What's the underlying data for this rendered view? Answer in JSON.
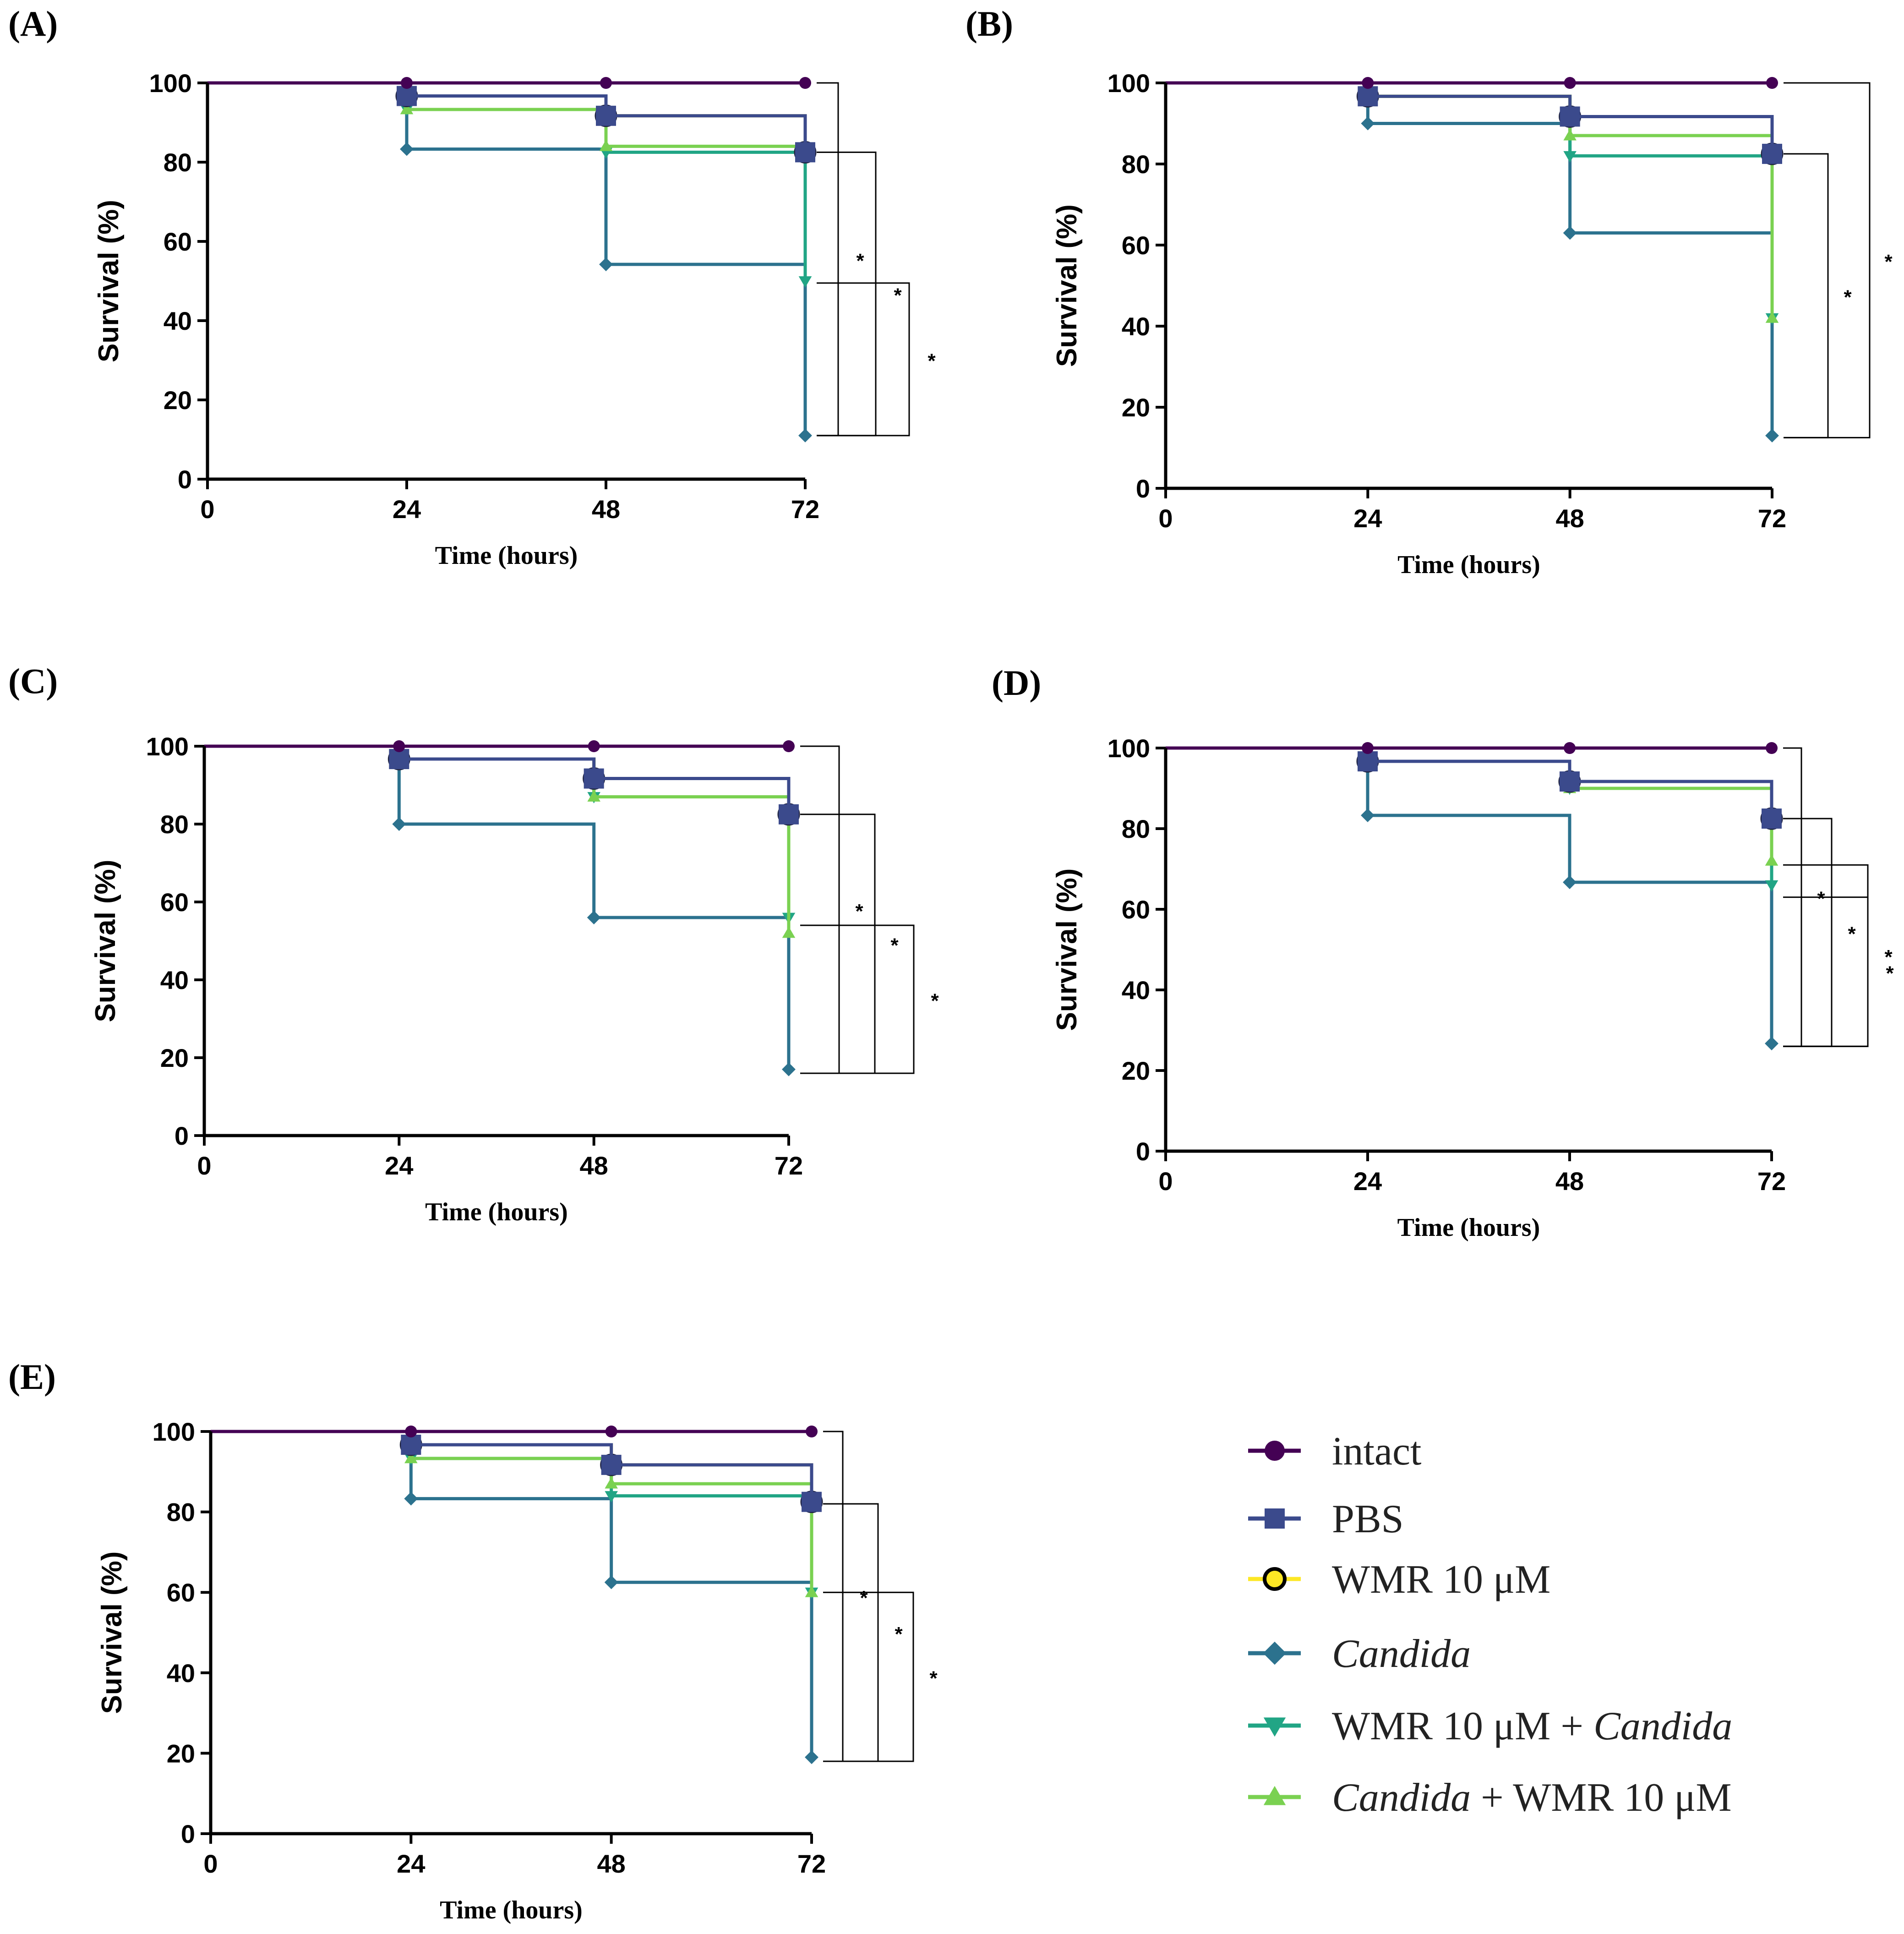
{
  "figure": {
    "legend": [
      {
        "key": "intact",
        "label": "intact",
        "italic_part": "",
        "prefix": "",
        "suffix": "",
        "color": "#440154",
        "marker": "circle"
      },
      {
        "key": "pbs",
        "label": "PBS",
        "italic_part": "",
        "prefix": "",
        "suffix": "",
        "color": "#3b4a8c",
        "marker": "square"
      },
      {
        "key": "wmr",
        "label": "WMR 10 μM",
        "italic_part": "",
        "prefix": "",
        "suffix": "",
        "color": "#fde725",
        "marker": "circle-open"
      },
      {
        "key": "candida",
        "label": "Candida",
        "italic_part": "Candida",
        "prefix": "",
        "suffix": "",
        "color": "#2c728e",
        "marker": "diamond"
      },
      {
        "key": "wmr_candida",
        "label": "WMR 10 μM + Candida",
        "italic_part": "Candida",
        "prefix": "WMR 10 μM + ",
        "suffix": "",
        "color": "#21a585",
        "marker": "triangle-down"
      },
      {
        "key": "candida_wmr",
        "label": "Candida + WMR 10 μM",
        "italic_part": "Candida",
        "prefix": "",
        "suffix": " + WMR 10 μM",
        "color": "#7ad151",
        "marker": "triangle-up"
      }
    ],
    "significance_marker": "*"
  },
  "chart_data": [
    {
      "panel": "(A)",
      "type": "line",
      "step": true,
      "xlabel": "Time (hours)",
      "ylabel": "Survival (%)",
      "xlim": [
        0,
        72
      ],
      "ylim": [
        0,
        100
      ],
      "xticks": [
        0,
        24,
        48,
        72
      ],
      "yticks": [
        0,
        20,
        40,
        60,
        80,
        100
      ],
      "series": [
        {
          "name": "intact",
          "x": [
            0,
            24,
            48,
            72
          ],
          "values": [
            100,
            100,
            100,
            100
          ]
        },
        {
          "name": "PBS",
          "x": [
            0,
            24,
            48,
            72
          ],
          "values": [
            100,
            96.7,
            91.7,
            82.5
          ]
        },
        {
          "name": "WMR 10 μM",
          "x": [
            0,
            24,
            48,
            72
          ],
          "values": [
            100,
            96.7,
            91.7,
            82.5
          ]
        },
        {
          "name": "Candida + WMR 10 μM",
          "x": [
            0,
            24,
            48,
            72
          ],
          "values": [
            100,
            93.3,
            84,
            84
          ]
        },
        {
          "name": "WMR 10 μM + Candida",
          "x": [
            0,
            24,
            48,
            72
          ],
          "values": [
            100,
            93.3,
            82.5,
            50
          ]
        },
        {
          "name": "Candida",
          "x": [
            0,
            24,
            48,
            72
          ],
          "values": [
            100,
            83.3,
            54.2,
            11
          ]
        }
      ],
      "brackets": [
        {
          "from": 100,
          "to": 11,
          "label": "*"
        },
        {
          "from": 82.5,
          "to": 11,
          "label": "*"
        },
        {
          "from": 49.5,
          "to": 11,
          "label": "*"
        }
      ]
    },
    {
      "panel": "(B)",
      "type": "line",
      "step": true,
      "xlabel": "Time (hours)",
      "ylabel": "Survival (%)",
      "xlim": [
        0,
        72
      ],
      "ylim": [
        0,
        100
      ],
      "xticks": [
        0,
        24,
        48,
        72
      ],
      "yticks": [
        0,
        20,
        40,
        60,
        80,
        100
      ],
      "series": [
        {
          "name": "intact",
          "x": [
            0,
            24,
            48,
            72
          ],
          "values": [
            100,
            100,
            100,
            100
          ]
        },
        {
          "name": "PBS",
          "x": [
            0,
            24,
            48,
            72
          ],
          "values": [
            100,
            96.7,
            91.7,
            82.5
          ]
        },
        {
          "name": "WMR 10 μM",
          "x": [
            0,
            24,
            48,
            72
          ],
          "values": [
            100,
            96.7,
            91.7,
            82.5
          ]
        },
        {
          "name": "Candida + WMR 10 μM",
          "x": [
            0,
            24,
            48,
            72
          ],
          "values": [
            100,
            96.7,
            87,
            42
          ]
        },
        {
          "name": "WMR 10 μM + Candida",
          "x": [
            0,
            24,
            48,
            72
          ],
          "values": [
            100,
            96.7,
            82,
            42
          ]
        },
        {
          "name": "Candida",
          "x": [
            0,
            24,
            48,
            72
          ],
          "values": [
            100,
            90,
            63,
            13
          ]
        }
      ],
      "brackets": [
        {
          "from": 82.5,
          "to": 12.5,
          "label": "*"
        },
        {
          "from": 100,
          "to": 12.5,
          "label": "*"
        }
      ]
    },
    {
      "panel": "(C)",
      "type": "line",
      "step": true,
      "xlabel": "Time (hours)",
      "ylabel": "Survival (%)",
      "xlim": [
        0,
        72
      ],
      "ylim": [
        0,
        100
      ],
      "xticks": [
        0,
        24,
        48,
        72
      ],
      "yticks": [
        0,
        20,
        40,
        60,
        80,
        100
      ],
      "series": [
        {
          "name": "intact",
          "x": [
            0,
            24,
            48,
            72
          ],
          "values": [
            100,
            100,
            100,
            100
          ]
        },
        {
          "name": "PBS",
          "x": [
            0,
            24,
            48,
            72
          ],
          "values": [
            100,
            96.7,
            91.7,
            82.5
          ]
        },
        {
          "name": "WMR 10 μM",
          "x": [
            0,
            24,
            48,
            72
          ],
          "values": [
            100,
            96.7,
            91.7,
            82.5
          ]
        },
        {
          "name": "Candida + WMR 10 μM",
          "x": [
            0,
            24,
            48,
            72
          ],
          "values": [
            100,
            96.7,
            87,
            52
          ]
        },
        {
          "name": "WMR 10 μM + Candida",
          "x": [
            0,
            24,
            48,
            72
          ],
          "values": [
            100,
            96.7,
            87,
            56
          ]
        },
        {
          "name": "Candida",
          "x": [
            0,
            24,
            48,
            72
          ],
          "values": [
            100,
            80,
            56,
            17
          ]
        }
      ],
      "brackets": [
        {
          "from": 100,
          "to": 16,
          "label": "*"
        },
        {
          "from": 82.5,
          "to": 16,
          "label": "*"
        },
        {
          "from": 54,
          "to": 16,
          "label": "*"
        }
      ]
    },
    {
      "panel": "(D)",
      "type": "line",
      "step": true,
      "xlabel": "Time (hours)",
      "ylabel": "Survival (%)",
      "xlim": [
        0,
        72
      ],
      "ylim": [
        0,
        100
      ],
      "xticks": [
        0,
        24,
        48,
        72
      ],
      "yticks": [
        0,
        20,
        40,
        60,
        80,
        100
      ],
      "series": [
        {
          "name": "intact",
          "x": [
            0,
            24,
            48,
            72
          ],
          "values": [
            100,
            100,
            100,
            100
          ]
        },
        {
          "name": "PBS",
          "x": [
            0,
            24,
            48,
            72
          ],
          "values": [
            100,
            96.7,
            91.7,
            82.5
          ]
        },
        {
          "name": "WMR 10 μM",
          "x": [
            0,
            24,
            48,
            72
          ],
          "values": [
            100,
            96.7,
            91.7,
            82.5
          ]
        },
        {
          "name": "Candida + WMR 10 μM",
          "x": [
            0,
            24,
            48,
            72
          ],
          "values": [
            100,
            96.7,
            90,
            72
          ]
        },
        {
          "name": "WMR 10 μM + Candida",
          "x": [
            0,
            24,
            48,
            72
          ],
          "values": [
            100,
            96.7,
            90,
            66
          ]
        },
        {
          "name": "Candida",
          "x": [
            0,
            24,
            48,
            72
          ],
          "values": [
            100,
            83.3,
            66.7,
            26.7
          ]
        }
      ],
      "brackets": [
        {
          "from": 100,
          "to": 26,
          "label": "*"
        },
        {
          "from": 82.5,
          "to": 26,
          "label": "*"
        },
        {
          "from": 71,
          "to": 26,
          "label": "*"
        },
        {
          "from": 63,
          "to": 26,
          "label": "*"
        }
      ]
    },
    {
      "panel": "(E)",
      "type": "line",
      "step": true,
      "xlabel": "Time (hours)",
      "ylabel": "Survival (%)",
      "xlim": [
        0,
        72
      ],
      "ylim": [
        0,
        100
      ],
      "xticks": [
        0,
        24,
        48,
        72
      ],
      "yticks": [
        0,
        20,
        40,
        60,
        80,
        100
      ],
      "series": [
        {
          "name": "intact",
          "x": [
            0,
            24,
            48,
            72
          ],
          "values": [
            100,
            100,
            100,
            100
          ]
        },
        {
          "name": "PBS",
          "x": [
            0,
            24,
            48,
            72
          ],
          "values": [
            100,
            96.7,
            91.7,
            82.5
          ]
        },
        {
          "name": "WMR 10 μM",
          "x": [
            0,
            24,
            48,
            72
          ],
          "values": [
            100,
            96.7,
            91.7,
            82.5
          ]
        },
        {
          "name": "Candida + WMR 10 μM",
          "x": [
            0,
            24,
            48,
            72
          ],
          "values": [
            100,
            93.3,
            87,
            60
          ]
        },
        {
          "name": "WMR 10 μM + Candida",
          "x": [
            0,
            24,
            48,
            72
          ],
          "values": [
            100,
            93.3,
            84,
            60
          ]
        },
        {
          "name": "Candida",
          "x": [
            0,
            24,
            48,
            72
          ],
          "values": [
            100,
            83.3,
            62.5,
            19
          ]
        }
      ],
      "brackets": [
        {
          "from": 100,
          "to": 18,
          "label": "*"
        },
        {
          "from": 82,
          "to": 18,
          "label": "*"
        },
        {
          "from": 60,
          "to": 18,
          "label": "*"
        }
      ]
    }
  ]
}
